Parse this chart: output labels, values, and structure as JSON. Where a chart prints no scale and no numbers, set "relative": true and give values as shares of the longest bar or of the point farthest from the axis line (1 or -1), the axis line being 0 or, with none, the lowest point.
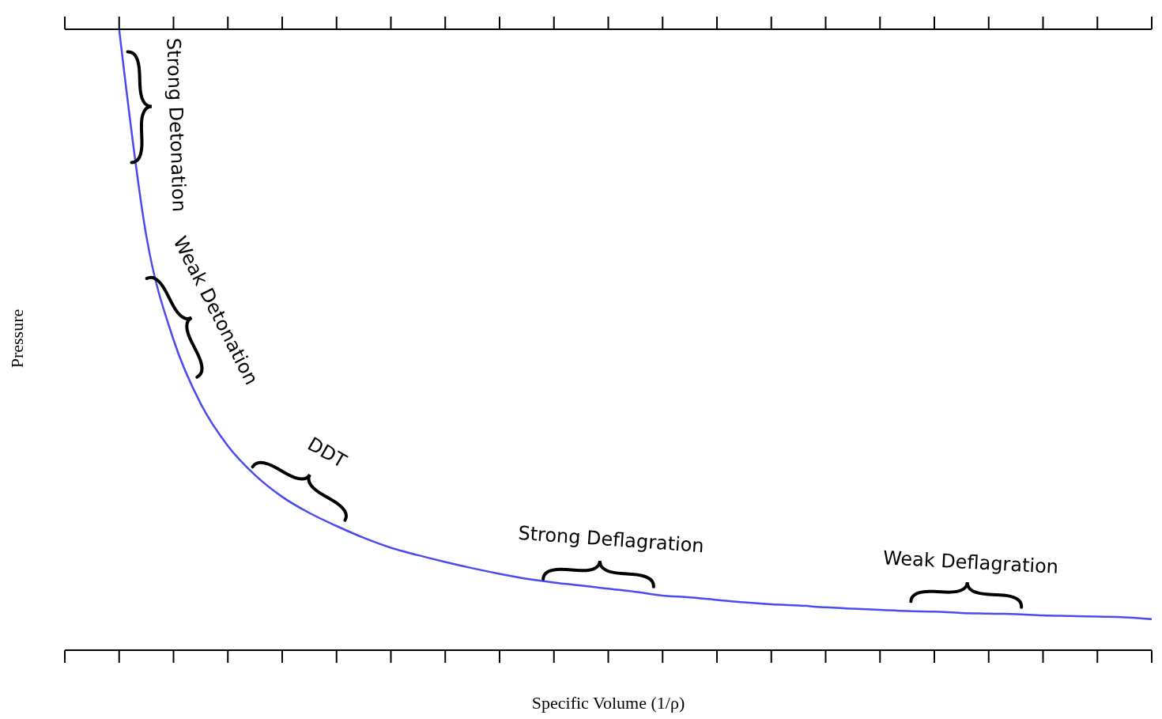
{
  "chart_data": {
    "type": "line",
    "relative": true,
    "xlabel": "Specific Volume (1/ρ)",
    "ylabel": "Pressure",
    "categories": [
      null,
      null,
      null,
      null,
      null,
      null,
      null,
      null,
      null,
      null,
      null,
      null,
      null,
      null,
      null,
      null,
      null,
      null,
      null,
      null,
      null,
      null,
      null,
      null,
      null,
      null,
      null,
      null,
      null,
      null,
      null,
      null,
      null,
      null,
      null,
      null,
      null,
      null,
      null,
      null,
      null
    ],
    "series": [
      {
        "color": "#4a4af0",
        "values": [
          null,
          null,
          1.0,
          0.667,
          0.5,
          0.397,
          0.329,
          0.282,
          0.247,
          0.221,
          0.2,
          0.181,
          0.165,
          0.153,
          0.142,
          0.132,
          0.123,
          0.115,
          0.109,
          0.104,
          0.099,
          0.094,
          0.088,
          0.085,
          0.081,
          0.077,
          0.074,
          0.072,
          0.069,
          0.067,
          0.065,
          0.063,
          0.062,
          0.06,
          0.059,
          0.058,
          0.056,
          0.055,
          0.054,
          0.053,
          0.05
        ]
      }
    ],
    "annotations": [
      "Strong Detonation",
      "Weak Detonation",
      "DDT",
      "Strong Deflagration",
      "Weak Deflagration"
    ],
    "marker": "none",
    "line_style": "solid"
  }
}
